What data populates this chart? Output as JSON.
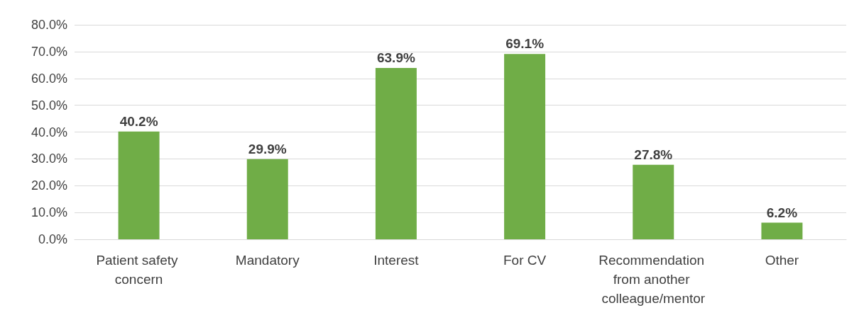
{
  "chart_data": {
    "type": "bar",
    "categories": [
      "Patient safety concern",
      "Mandatory",
      "Interest",
      "For CV",
      "Recommendation from another colleague/mentor",
      "Other"
    ],
    "values": [
      40.2,
      29.9,
      63.9,
      69.1,
      27.8,
      6.2
    ],
    "value_labels": [
      "40.2%",
      "29.9%",
      "63.9%",
      "69.1%",
      "27.8%",
      "6.2%"
    ],
    "color": "#70ad47",
    "ylim": [
      0,
      80
    ],
    "yticks": [
      {
        "value": 0,
        "label": "0.0%"
      },
      {
        "value": 10,
        "label": "10.0%"
      },
      {
        "value": 20,
        "label": "20.0%"
      },
      {
        "value": 30,
        "label": "30.0%"
      },
      {
        "value": 40,
        "label": "40.0%"
      },
      {
        "value": 50,
        "label": "50.0%"
      },
      {
        "value": 60,
        "label": "60.0%"
      },
      {
        "value": 70,
        "label": "70.0%"
      },
      {
        "value": 80,
        "label": "80.0%"
      }
    ],
    "grid": "y"
  }
}
